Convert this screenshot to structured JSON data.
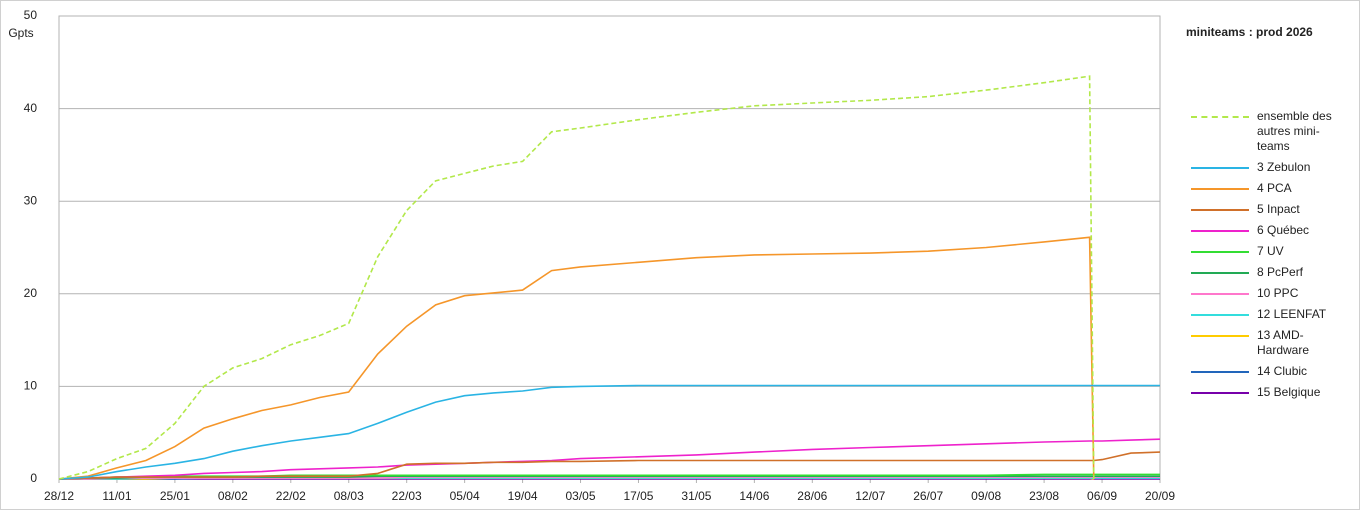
{
  "chart_data": {
    "type": "line",
    "title": "miniteams : prod 2026",
    "y_label": "Gpts",
    "x": [
      "28/12",
      "04/01",
      "11/01",
      "18/01",
      "25/01",
      "01/02",
      "08/02",
      "15/02",
      "22/02",
      "01/03",
      "08/03",
      "15/03",
      "22/03",
      "29/03",
      "05/04",
      "12/04",
      "19/04",
      "26/04",
      "03/05",
      "17/05",
      "31/05",
      "14/06",
      "28/06",
      "12/07",
      "26/07",
      "09/08",
      "23/08",
      "03/09",
      "04/09",
      "06/09",
      "13/09",
      "20/09"
    ],
    "xlim": [
      "28/12",
      "20/09"
    ],
    "xticks": [
      "28/12",
      "11/01",
      "25/01",
      "08/02",
      "22/02",
      "08/03",
      "22/03",
      "05/04",
      "19/04",
      "03/05",
      "17/05",
      "31/05",
      "14/06",
      "28/06",
      "12/07",
      "26/07",
      "09/08",
      "23/08",
      "06/09",
      "20/09"
    ],
    "ylim": [
      0,
      50
    ],
    "yticks": [
      0,
      10,
      20,
      30,
      40,
      50
    ],
    "grid": true,
    "legend": "right",
    "series": [
      {
        "name": "ensemble des autres mini-teams",
        "color": "#b2e84a",
        "dashed": true,
        "values": [
          0,
          0.8,
          2.2,
          3.3,
          6,
          10,
          12,
          13,
          14.5,
          15.5,
          16.8,
          24,
          29,
          32.2,
          33,
          33.8,
          34.3,
          37.5,
          37.9,
          38.8,
          39.6,
          40.3,
          40.6,
          40.9,
          41.3,
          42,
          42.8,
          43.5,
          0,
          null,
          null,
          null
        ]
      },
      {
        "name": "3 Zebulon",
        "color": "#2ab4e4",
        "values": [
          0,
          0.2,
          0.8,
          1.3,
          1.7,
          2.2,
          3,
          3.6,
          4.1,
          4.5,
          4.9,
          6,
          7.2,
          8.3,
          9,
          9.3,
          9.5,
          9.9,
          10,
          10.1,
          10.1,
          10.1,
          10.1,
          10.1,
          10.1,
          10.1,
          10.1,
          10.1,
          10.1,
          10.1,
          10.1,
          10.1
        ]
      },
      {
        "name": "4 PCA",
        "color": "#f5962a",
        "values": [
          0,
          0.3,
          1.2,
          2,
          3.5,
          5.5,
          6.5,
          7.4,
          8,
          8.8,
          9.4,
          13.5,
          16.5,
          18.8,
          19.8,
          20.1,
          20.4,
          22.5,
          22.9,
          23.4,
          23.9,
          24.2,
          24.3,
          24.4,
          24.6,
          25,
          25.6,
          26.1,
          0,
          null,
          null,
          null
        ]
      },
      {
        "name": "5 Inpact",
        "color": "#d0702a",
        "values": [
          0,
          0.1,
          0.2,
          0.2,
          0.2,
          0.2,
          0.2,
          0.3,
          0.3,
          0.3,
          0.3,
          0.6,
          1.6,
          1.7,
          1.7,
          1.8,
          1.8,
          1.9,
          1.9,
          2,
          2,
          2,
          2,
          2,
          2,
          2,
          2,
          2,
          2,
          2.1,
          2.8,
          2.9
        ]
      },
      {
        "name": "6 Québec",
        "color": "#ee22cc",
        "values": [
          0,
          0.1,
          0.2,
          0.3,
          0.4,
          0.6,
          0.7,
          0.8,
          1,
          1.1,
          1.2,
          1.3,
          1.5,
          1.6,
          1.7,
          1.8,
          1.9,
          2,
          2.2,
          2.4,
          2.6,
          2.9,
          3.2,
          3.4,
          3.6,
          3.8,
          4,
          4.1,
          4.1,
          4.1,
          4.2,
          4.3
        ]
      },
      {
        "name": "7 UV",
        "color": "#33dd33",
        "values": [
          0,
          0.1,
          0.2,
          0.2,
          0.3,
          0.3,
          0.3,
          0.3,
          0.4,
          0.4,
          0.4,
          0.4,
          0.4,
          0.4,
          0.4,
          0.4,
          0.4,
          0.4,
          0.4,
          0.4,
          0.4,
          0.4,
          0.4,
          0.4,
          0.4,
          0.4,
          0.5,
          0.5,
          0.5,
          0.5,
          0.5,
          0.5
        ]
      },
      {
        "name": "8 PcPerf",
        "color": "#22aa55",
        "values": [
          0,
          0.1,
          0.1,
          0.2,
          0.2,
          0.2,
          0.2,
          0.2,
          0.2,
          0.2,
          0.2,
          0.3,
          0.3,
          0.3,
          0.3,
          0.3,
          0.3,
          0.3,
          0.3,
          0.3,
          0.3,
          0.3,
          0.3,
          0.3,
          0.3,
          0.3,
          0.3,
          0.3,
          0.3,
          0.3,
          0.3,
          0.3
        ]
      },
      {
        "name": "10 PPC",
        "color": "#ff77cc",
        "values": [
          0,
          0,
          0.1,
          0.1,
          0.1,
          0.1,
          0.1,
          0.1,
          0.1,
          0.1,
          0.1,
          0.1,
          0.2,
          0.2,
          0.2,
          0.2,
          0.2,
          0.2,
          0.2,
          0.2,
          0.2,
          0.2,
          0.2,
          0.2,
          0.2,
          0.2,
          0.2,
          0.2,
          0.2,
          0.2,
          0.2,
          0.2
        ]
      },
      {
        "name": "12 LEENFAT",
        "color": "#33dddd",
        "values": [
          0,
          0,
          0,
          0.1,
          0.1,
          0.1,
          0.1,
          0.1,
          0.1,
          0.1,
          0.1,
          0.1,
          0.1,
          0.1,
          0.1,
          0.1,
          0.1,
          0.1,
          0.1,
          0.1,
          0.1,
          0.1,
          0.1,
          0.1,
          0.1,
          0.1,
          0.1,
          0.1,
          0.1,
          0.1,
          0.1,
          0.1
        ]
      },
      {
        "name": "13 AMD-Hardware",
        "color": "#ffcc00",
        "values": [
          0,
          0,
          0,
          0,
          0.1,
          0.1,
          0.1,
          0.1,
          0.1,
          0.1,
          0.1,
          0.1,
          0.1,
          0.1,
          0.1,
          0.1,
          0.1,
          0.1,
          0.1,
          0.1,
          0.1,
          0.1,
          0.1,
          0.1,
          0.1,
          0.1,
          0.1,
          0.1,
          0,
          null,
          null,
          null
        ]
      },
      {
        "name": "14 Clubic",
        "color": "#2266bb",
        "values": [
          0,
          0,
          0,
          0,
          0,
          0.1,
          0.1,
          0.1,
          0.1,
          0.1,
          0.1,
          0.1,
          0.1,
          0.1,
          0.1,
          0.1,
          0.1,
          0.1,
          0.1,
          0.1,
          0.1,
          0.1,
          0.1,
          0.1,
          0.1,
          0.1,
          0.1,
          0.1,
          0.1,
          0.1,
          0.1,
          0.1
        ]
      },
      {
        "name": "15 Belgique",
        "color": "#7700aa",
        "values": [
          0,
          0,
          0,
          0,
          0,
          0,
          0,
          0,
          0,
          0,
          0,
          0,
          0,
          0,
          0,
          0,
          0,
          0,
          0,
          0,
          0,
          0,
          0,
          0,
          0,
          0,
          0,
          0,
          0,
          0,
          0,
          0
        ]
      }
    ]
  }
}
